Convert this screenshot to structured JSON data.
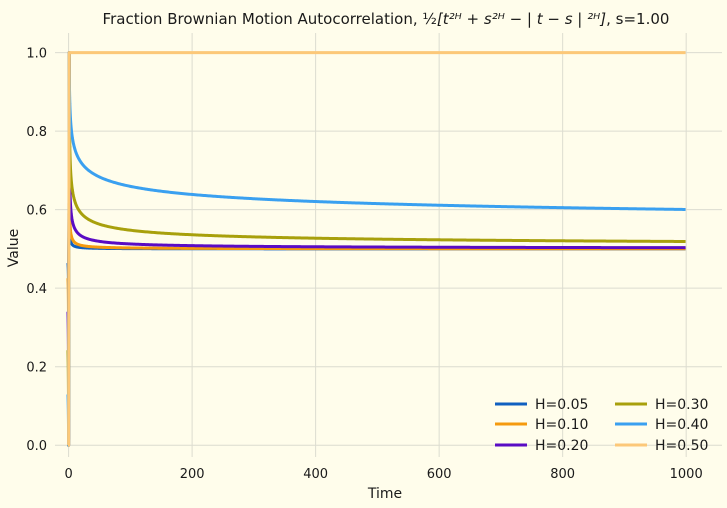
{
  "chart_data": {
    "type": "line",
    "title_prefix": "Fraction Brownian Motion Autocorrelation, ",
    "title_half": "½",
    "title_formula": "[t²ᴴ + s²ᴴ − | t − s | ²ᴴ]",
    "title_suffix": ", s=1.00",
    "xlabel": "Time",
    "ylabel": "Value",
    "xlim": [
      -22,
      1058
    ],
    "ylim": [
      -0.03,
      1.05
    ],
    "x_ticks": [
      0,
      200,
      400,
      600,
      800,
      1000
    ],
    "y_ticks": [
      0.0,
      0.2,
      0.4,
      0.6,
      0.8,
      1.0
    ],
    "x_tick_labels": [
      "0",
      "200",
      "400",
      "600",
      "800",
      "1000"
    ],
    "y_tick_labels": [
      "0.0",
      "0.2",
      "0.4",
      "0.6",
      "0.8",
      "1.0"
    ],
    "grid": true,
    "legend_placement": "bottom-right",
    "legend_columns": 2,
    "s": 1.0,
    "t_range": [
      -1,
      1000
    ],
    "series": [
      {
        "name": "H=0.05",
        "H": 0.05,
        "color": "#1060c0"
      },
      {
        "name": "H=0.10",
        "H": 0.1,
        "color": "#f59a0e"
      },
      {
        "name": "H=0.20",
        "H": 0.2,
        "color": "#5a0cc4"
      },
      {
        "name": "H=0.30",
        "H": 0.3,
        "color": "#a8a00c"
      },
      {
        "name": "H=0.40",
        "H": 0.4,
        "color": "#3aa0f0"
      },
      {
        "name": "H=0.50",
        "H": 0.5,
        "color": "#fcc878"
      }
    ]
  }
}
